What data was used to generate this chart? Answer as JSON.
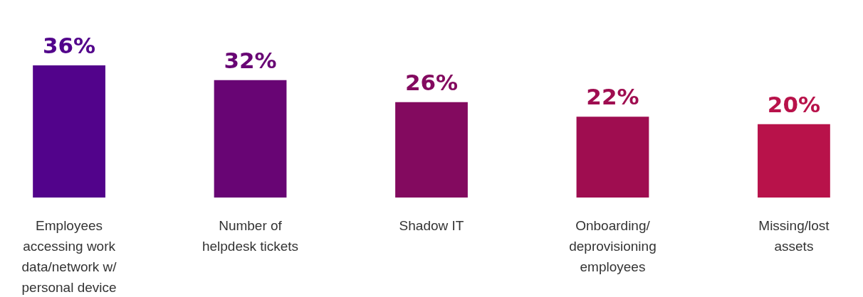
{
  "chart_data": {
    "type": "bar",
    "categories": [
      "Employees accessing work data/network w/ personal device",
      "Number of helpdesk tickets",
      "Shadow IT",
      "Onboarding/ deprovisioning employees",
      "Missing/lost assets"
    ],
    "values": [
      36,
      32,
      26,
      22,
      20
    ],
    "value_labels": [
      "36%",
      "32%",
      "26%",
      "22%",
      "20%"
    ],
    "colors": [
      "#52038b",
      "#680574",
      "#830a5f",
      "#9f0d50",
      "#b8124a"
    ]
  }
}
